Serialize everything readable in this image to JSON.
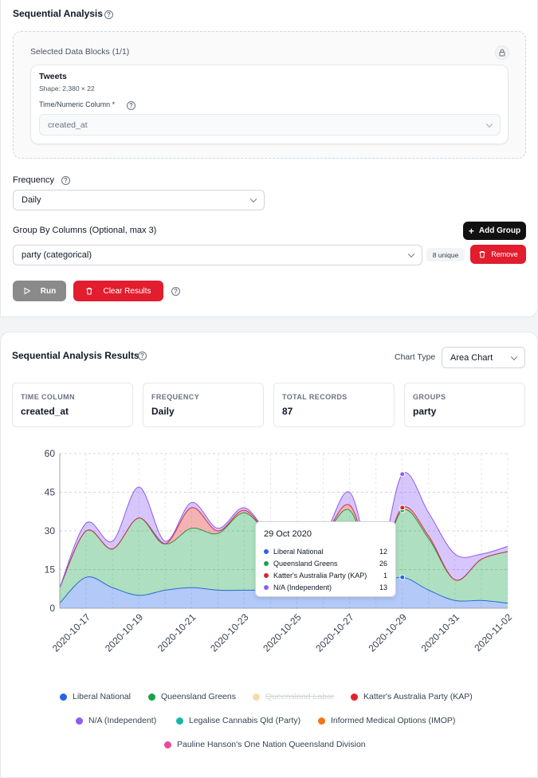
{
  "config": {
    "title": "Sequential Analysis",
    "selected_blocks_label": "Selected Data Blocks (1/1)",
    "block_name": "Tweets",
    "block_shape": "Shape: 2,380 × 22",
    "time_col_label": "Time/Numeric Column *",
    "time_col_value": "created_at",
    "frequency_label": "Frequency",
    "frequency_value": "Daily",
    "group_by_label": "Group By Columns (Optional, max 3)",
    "add_group_label": "Add Group",
    "group_value": "party (categorical)",
    "unique_badge": "8 unique",
    "remove_label": "Remove",
    "run_label": "Run",
    "clear_label": "Clear Results"
  },
  "results": {
    "title": "Sequential Analysis Results",
    "chart_type_label": "Chart Type",
    "chart_type_value": "Area Chart",
    "stats": [
      {
        "label": "TIME COLUMN",
        "value": "created_at"
      },
      {
        "label": "FREQUENCY",
        "value": "Daily"
      },
      {
        "label": "TOTAL RECORDS",
        "value": "87"
      },
      {
        "label": "GROUPS",
        "value": "party"
      }
    ]
  },
  "tooltip": {
    "date": "29 Oct 2020",
    "rows": [
      {
        "name": "Liberal National",
        "value": "12",
        "color": "#2563eb"
      },
      {
        "name": "Queensland Greens",
        "value": "26",
        "color": "#16a34a"
      },
      {
        "name": "Katter's Australia Party (KAP)",
        "value": "1",
        "color": "#dc2626"
      },
      {
        "name": "N/A (Independent)",
        "value": "13",
        "color": "#8b5cf6"
      }
    ]
  },
  "legend": [
    {
      "name": "Liberal National",
      "color": "#2563eb",
      "hidden": false
    },
    {
      "name": "Queensland Greens",
      "color": "#16a34a",
      "hidden": false
    },
    {
      "name": "Queensland Labor",
      "color": "#fcd9a8",
      "hidden": true
    },
    {
      "name": "Katter's Australia Party (KAP)",
      "color": "#dc2626",
      "hidden": false
    },
    {
      "name": "N/A (Independent)",
      "color": "#8b5cf6",
      "hidden": false
    },
    {
      "name": "Legalise Cannabis Qld (Party)",
      "color": "#14b8a6",
      "hidden": false
    },
    {
      "name": "Informed Medical Options (IMOP)",
      "color": "#f97316",
      "hidden": false
    },
    {
      "name": "Pauline Hanson's One Nation Queensland Division",
      "color": "#ec4899",
      "hidden": false
    }
  ],
  "chart_data": {
    "type": "area",
    "stacked": true,
    "x": [
      "2020-10-16",
      "2020-10-17",
      "2020-10-18",
      "2020-10-19",
      "2020-10-20",
      "2020-10-21",
      "2020-10-22",
      "2020-10-23",
      "2020-10-24",
      "2020-10-25",
      "2020-10-26",
      "2020-10-27",
      "2020-10-28",
      "2020-10-29",
      "2020-10-30",
      "2020-10-31",
      "2020-11-01",
      "2020-11-02"
    ],
    "x_ticks": [
      "2020-10-17",
      "2020-10-19",
      "2020-10-21",
      "2020-10-23",
      "2020-10-25",
      "2020-10-27",
      "2020-10-29",
      "2020-10-31",
      "2020-11-02"
    ],
    "y_ticks": [
      0,
      15,
      30,
      45,
      60
    ],
    "ylim": [
      0,
      60
    ],
    "grid": true,
    "legend_position": "bottom",
    "series": [
      {
        "name": "Liberal National",
        "color": "#2563eb",
        "values": [
          2,
          12,
          8,
          5,
          7,
          8,
          7,
          7,
          7,
          7,
          8,
          10,
          9,
          12,
          7,
          3,
          3,
          2
        ]
      },
      {
        "name": "Queensland Greens",
        "color": "#16a34a",
        "values": [
          6,
          18,
          15,
          30,
          18,
          23,
          22,
          30,
          21,
          18,
          20,
          28,
          6,
          26,
          20,
          8,
          16,
          20
        ]
      },
      {
        "name": "Katter's Australia Party (KAP)",
        "color": "#dc2626",
        "values": [
          0,
          0,
          0,
          0,
          0,
          8,
          1,
          1,
          0,
          0,
          0,
          2,
          0,
          1,
          1,
          0,
          0,
          0
        ]
      },
      {
        "name": "N/A (Independent)",
        "color": "#8b5cf6",
        "values": [
          0,
          3,
          3,
          12,
          1,
          2,
          1,
          1,
          0,
          0,
          0,
          5,
          0,
          13,
          9,
          10,
          2,
          2
        ]
      }
    ]
  }
}
